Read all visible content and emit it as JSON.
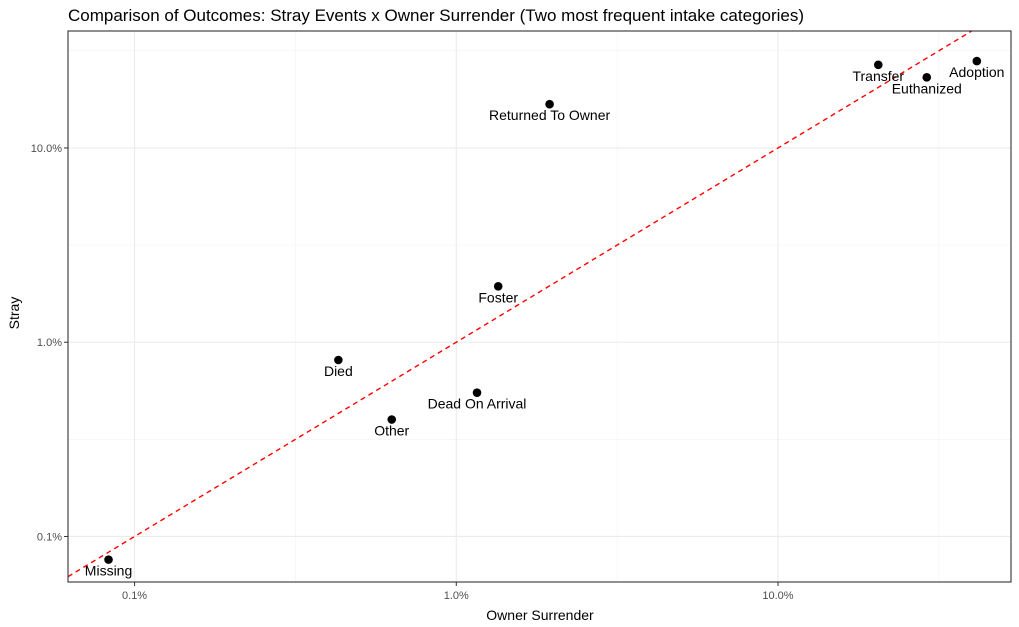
{
  "chart_data": {
    "type": "scatter",
    "title": "Comparison of Outcomes: Stray Events x Owner Surrender (Two most frequent intake categories)",
    "xlabel": "Owner Surrender",
    "ylabel": "Stray",
    "x_scale": "log10",
    "y_scale": "log10",
    "xlim": [
      0.0621,
      53.0
    ],
    "ylim": [
      0.0583,
      40.0
    ],
    "x_ticks": [
      0.1,
      1,
      10
    ],
    "x_tick_labels": [
      "0.1%",
      "1.0%",
      "10.0%"
    ],
    "y_ticks": [
      0.1,
      1,
      10
    ],
    "y_tick_labels": [
      "0.1%",
      "1.0%",
      "10.0%"
    ],
    "grid": true,
    "reference_line": {
      "type": "identity",
      "color": "#ff0000",
      "style": "dashed"
    },
    "points": [
      {
        "label": "Adoption",
        "x": 41.5,
        "y": 28.0
      },
      {
        "label": "Transfer",
        "x": 20.5,
        "y": 26.8
      },
      {
        "label": "Euthanized",
        "x": 29.0,
        "y": 23.1
      },
      {
        "label": "Returned To Owner",
        "x": 1.95,
        "y": 16.8
      },
      {
        "label": "Foster",
        "x": 1.35,
        "y": 1.94
      },
      {
        "label": "Died",
        "x": 0.43,
        "y": 0.81
      },
      {
        "label": "Dead On Arrival",
        "x": 1.16,
        "y": 0.55
      },
      {
        "label": "Other",
        "x": 0.63,
        "y": 0.4
      },
      {
        "label": "Missing",
        "x": 0.083,
        "y": 0.076
      }
    ]
  },
  "colors": {
    "point": "#000000",
    "reference_line": "#ff0000",
    "panel_background": "#ffffff",
    "panel_border": "#333333",
    "grid": "#ebebeb"
  }
}
